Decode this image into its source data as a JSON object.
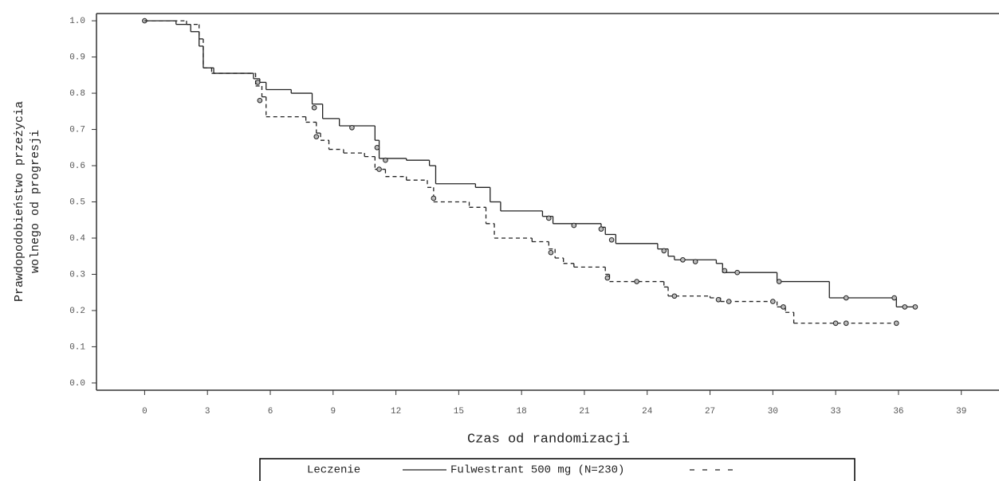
{
  "chart_data": {
    "type": "km",
    "x_label": "Czas od randomizacji",
    "y_label": [
      "Prawdopodobieństwo przeżycia",
      "wolnego od progresji"
    ],
    "legend_title": "Leczenie",
    "xlim": [
      -2.3,
      40.8
    ],
    "ylim": [
      -0.02,
      1.02
    ],
    "xticks": [
      0,
      3,
      6,
      9,
      12,
      15,
      18,
      21,
      24,
      27,
      30,
      33,
      36,
      39
    ],
    "yticks": [
      {
        "value": 0,
        "label": "0.0"
      },
      0.1,
      0.2,
      0.3,
      0.4,
      0.5,
      0.6,
      0.7,
      0.8,
      0.9,
      {
        "value": 1,
        "label": "1.0"
      }
    ],
    "series": [
      {
        "name": "Fulwestrant 500 mg (N=230)",
        "color": "#222222",
        "dash": "none",
        "x": [
          0,
          1.5,
          2.2,
          2.6,
          2.8,
          3.3,
          5.2,
          5.5,
          5.8,
          7,
          8,
          8.5,
          9.3,
          11,
          11.2,
          12.5,
          13.6,
          13.9,
          15.8,
          16.5,
          17,
          19,
          19.5,
          21.8,
          22,
          22.5,
          24.5,
          25,
          25.3,
          27.3,
          27.6,
          30.2,
          32.7,
          35.9,
          36.8
        ],
        "values": [
          1.0,
          0.99,
          0.97,
          0.93,
          0.87,
          0.855,
          0.84,
          0.83,
          0.81,
          0.8,
          0.77,
          0.73,
          0.71,
          0.67,
          0.62,
          0.615,
          0.6,
          0.55,
          0.54,
          0.5,
          0.475,
          0.46,
          0.44,
          0.43,
          0.41,
          0.385,
          0.37,
          0.35,
          0.34,
          0.33,
          0.305,
          0.28,
          0.235,
          0.21,
          0.21
        ],
        "censored_x": [
          0,
          5.4,
          8.1,
          9.9,
          11.1,
          11.5,
          19.3,
          20.5,
          21.8,
          22.3,
          24.8,
          25.7,
          26.3,
          27.7,
          28.3,
          30.3,
          33.5,
          35.8,
          36.3,
          36.8
        ],
        "censored_y": [
          1.0,
          0.83,
          0.76,
          0.705,
          0.65,
          0.615,
          0.455,
          0.435,
          0.425,
          0.395,
          0.365,
          0.34,
          0.335,
          0.31,
          0.305,
          0.28,
          0.235,
          0.235,
          0.21,
          0.21
        ]
      },
      {
        "color": "#222222",
        "dash": "5,4",
        "x": [
          0,
          2,
          2.6,
          2.8,
          3.2,
          5.3,
          5.6,
          5.8,
          7.7,
          8.2,
          8.4,
          8.8,
          9.5,
          10.5,
          11,
          11.5,
          12.5,
          13.5,
          13.8,
          15.5,
          16.3,
          16.7,
          18.5,
          19.3,
          19.6,
          20,
          20.5,
          22,
          22.2,
          24.8,
          25,
          27,
          27.5,
          30.2,
          30.6,
          31,
          35.9
        ],
        "values": [
          1.0,
          0.99,
          0.95,
          0.87,
          0.855,
          0.82,
          0.79,
          0.735,
          0.72,
          0.69,
          0.67,
          0.645,
          0.635,
          0.625,
          0.59,
          0.57,
          0.56,
          0.54,
          0.5,
          0.485,
          0.44,
          0.4,
          0.39,
          0.37,
          0.345,
          0.33,
          0.32,
          0.3,
          0.28,
          0.265,
          0.24,
          0.235,
          0.225,
          0.21,
          0.195,
          0.165,
          0.165
        ],
        "censored_x": [
          5.5,
          8.2,
          11.2,
          13.8,
          19.4,
          22.1,
          23.5,
          25.3,
          27.4,
          27.9,
          30,
          30.5,
          33,
          33.5,
          35.9
        ],
        "censored_y": [
          0.78,
          0.68,
          0.59,
          0.51,
          0.36,
          0.29,
          0.28,
          0.24,
          0.23,
          0.225,
          0.225,
          0.21,
          0.165,
          0.165,
          0.165
        ]
      }
    ]
  }
}
